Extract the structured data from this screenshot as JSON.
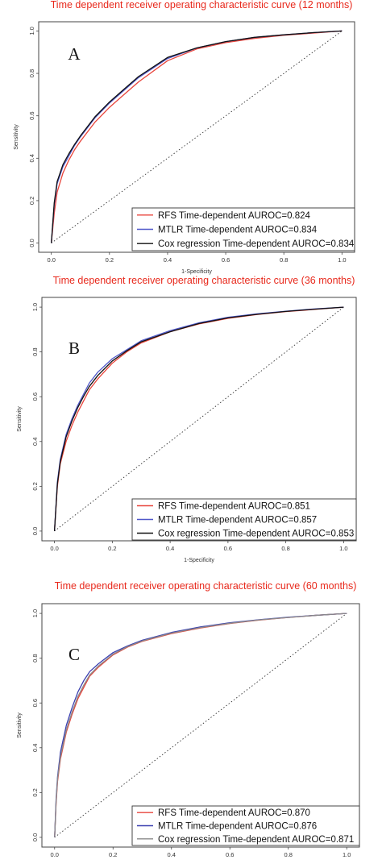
{
  "chart_data": [
    {
      "type": "line",
      "panel_label": "A",
      "title": "Time dependent receiver operating characteristic curve (12 months)",
      "xlabel": "1-Specificity",
      "ylabel": "Sensitivity",
      "xlim": [
        0,
        1
      ],
      "ylim": [
        0,
        1
      ],
      "xticks": [
        "0.0",
        "0.2",
        "0.4",
        "0.6",
        "0.8",
        "1.0"
      ],
      "yticks": [
        "0.0",
        "0.2",
        "0.4",
        "0.6",
        "0.8",
        "1.0"
      ],
      "grid": false,
      "legend_position": "bottom-right",
      "reference_line": "diagonal dotted",
      "series": [
        {
          "name": "RFS Time-dependent AUROC=0.824",
          "color": "#e8453c",
          "x": [
            0,
            0.01,
            0.02,
            0.04,
            0.06,
            0.08,
            0.1,
            0.15,
            0.2,
            0.25,
            0.3,
            0.4,
            0.5,
            0.6,
            0.7,
            0.8,
            0.9,
            1.0
          ],
          "y": [
            0,
            0.14,
            0.24,
            0.33,
            0.39,
            0.44,
            0.48,
            0.57,
            0.64,
            0.7,
            0.76,
            0.86,
            0.915,
            0.945,
            0.965,
            0.98,
            0.99,
            1.0
          ]
        },
        {
          "name": "MTLR Time-dependent AUROC=0.834",
          "color": "#4f57c9",
          "x": [
            0,
            0.01,
            0.02,
            0.04,
            0.06,
            0.08,
            0.1,
            0.15,
            0.2,
            0.25,
            0.3,
            0.4,
            0.5,
            0.6,
            0.7,
            0.8,
            0.9,
            1.0
          ],
          "y": [
            0,
            0.18,
            0.28,
            0.36,
            0.41,
            0.46,
            0.5,
            0.59,
            0.66,
            0.72,
            0.78,
            0.87,
            0.92,
            0.95,
            0.97,
            0.982,
            0.992,
            1.0
          ]
        },
        {
          "name": "Cox regression Time-dependent AUROC=0.834",
          "color": "#111111",
          "x": [
            0,
            0.01,
            0.02,
            0.04,
            0.06,
            0.08,
            0.1,
            0.15,
            0.2,
            0.25,
            0.3,
            0.4,
            0.5,
            0.6,
            0.7,
            0.8,
            0.9,
            1.0
          ],
          "y": [
            0,
            0.19,
            0.29,
            0.37,
            0.42,
            0.465,
            0.505,
            0.595,
            0.665,
            0.725,
            0.785,
            0.875,
            0.92,
            0.95,
            0.97,
            0.982,
            0.992,
            1.0
          ]
        }
      ]
    },
    {
      "type": "line",
      "panel_label": "B",
      "title": "Time dependent receiver operating characteristic curve (36 months)",
      "xlabel": "1-Specificity",
      "ylabel": "Sensitivity",
      "xlim": [
        0,
        1
      ],
      "ylim": [
        0,
        1
      ],
      "xticks": [
        "0.0",
        "0.2",
        "0.4",
        "0.6",
        "0.8",
        "1.0"
      ],
      "yticks": [
        "0.0",
        "0.2",
        "0.4",
        "0.6",
        "0.8",
        "1.0"
      ],
      "grid": false,
      "legend_position": "bottom-right",
      "reference_line": "diagonal dotted",
      "series": [
        {
          "name": "RFS Time-dependent AUROC=0.851",
          "color": "#e8453c",
          "x": [
            0,
            0.01,
            0.02,
            0.04,
            0.06,
            0.08,
            0.1,
            0.12,
            0.15,
            0.2,
            0.25,
            0.3,
            0.4,
            0.5,
            0.6,
            0.7,
            0.8,
            0.9,
            1.0
          ],
          "y": [
            0,
            0.2,
            0.3,
            0.4,
            0.47,
            0.53,
            0.58,
            0.63,
            0.68,
            0.75,
            0.8,
            0.84,
            0.89,
            0.925,
            0.95,
            0.967,
            0.98,
            0.99,
            1.0
          ]
        },
        {
          "name": "MTLR Time-dependent AUROC=0.857",
          "color": "#4f57c9",
          "x": [
            0,
            0.01,
            0.02,
            0.04,
            0.06,
            0.08,
            0.1,
            0.12,
            0.15,
            0.2,
            0.25,
            0.3,
            0.4,
            0.5,
            0.6,
            0.7,
            0.8,
            0.9,
            1.0
          ],
          "y": [
            0,
            0.22,
            0.32,
            0.43,
            0.5,
            0.56,
            0.61,
            0.66,
            0.71,
            0.77,
            0.81,
            0.85,
            0.895,
            0.93,
            0.955,
            0.97,
            0.982,
            0.992,
            1.0
          ]
        },
        {
          "name": "Cox regression Time-dependent AUROC=0.853",
          "color": "#111111",
          "x": [
            0,
            0.01,
            0.02,
            0.04,
            0.06,
            0.08,
            0.1,
            0.12,
            0.15,
            0.2,
            0.25,
            0.3,
            0.4,
            0.5,
            0.6,
            0.7,
            0.8,
            0.9,
            1.0
          ],
          "y": [
            0,
            0.21,
            0.31,
            0.42,
            0.49,
            0.55,
            0.6,
            0.645,
            0.695,
            0.76,
            0.805,
            0.845,
            0.89,
            0.927,
            0.952,
            0.968,
            0.981,
            0.991,
            1.0
          ]
        }
      ]
    },
    {
      "type": "line",
      "panel_label": "C",
      "title": "Time dependent receiver operating characteristic curve (60 months)",
      "xlabel": "1-Specificity",
      "ylabel": "Sensitivity",
      "xlim": [
        0,
        1
      ],
      "ylim": [
        0,
        1
      ],
      "xticks": [
        "0.0",
        "0.2",
        "0.4",
        "0.6",
        "0.8",
        "1.0"
      ],
      "yticks": [
        "0.0",
        "0.2",
        "0.4",
        "0.6",
        "0.8",
        "1.0"
      ],
      "grid": false,
      "legend_position": "bottom-right",
      "reference_line": "diagonal dotted",
      "series": [
        {
          "name": "RFS Time-dependent AUROC=0.870",
          "color": "#e8453c",
          "x": [
            0,
            0.005,
            0.01,
            0.02,
            0.04,
            0.06,
            0.08,
            0.1,
            0.12,
            0.15,
            0.2,
            0.25,
            0.3,
            0.4,
            0.5,
            0.6,
            0.7,
            0.8,
            0.9,
            1.0
          ],
          "y": [
            0,
            0.15,
            0.25,
            0.35,
            0.47,
            0.55,
            0.62,
            0.67,
            0.72,
            0.76,
            0.815,
            0.85,
            0.875,
            0.91,
            0.935,
            0.955,
            0.97,
            0.982,
            0.992,
            1.0
          ]
        },
        {
          "name": "MTLR Time-dependent AUROC=0.876",
          "color": "#3a3fb0",
          "x": [
            0,
            0.005,
            0.01,
            0.02,
            0.04,
            0.06,
            0.08,
            0.1,
            0.12,
            0.15,
            0.2,
            0.25,
            0.3,
            0.4,
            0.5,
            0.6,
            0.7,
            0.8,
            0.9,
            1.0
          ],
          "y": [
            0,
            0.17,
            0.27,
            0.38,
            0.5,
            0.58,
            0.65,
            0.7,
            0.74,
            0.775,
            0.825,
            0.855,
            0.88,
            0.915,
            0.94,
            0.958,
            0.972,
            0.983,
            0.992,
            1.0
          ]
        },
        {
          "name": "Cox regression Time-dependent AUROC=0.871",
          "color": "#8a8a8a",
          "x": [
            0,
            0.005,
            0.01,
            0.02,
            0.04,
            0.06,
            0.08,
            0.1,
            0.12,
            0.15,
            0.2,
            0.25,
            0.3,
            0.4,
            0.5,
            0.6,
            0.7,
            0.8,
            0.9,
            1.0
          ],
          "y": [
            0,
            0.16,
            0.26,
            0.36,
            0.48,
            0.56,
            0.63,
            0.68,
            0.725,
            0.765,
            0.818,
            0.852,
            0.877,
            0.912,
            0.937,
            0.956,
            0.971,
            0.982,
            0.992,
            1.0
          ]
        }
      ]
    }
  ]
}
